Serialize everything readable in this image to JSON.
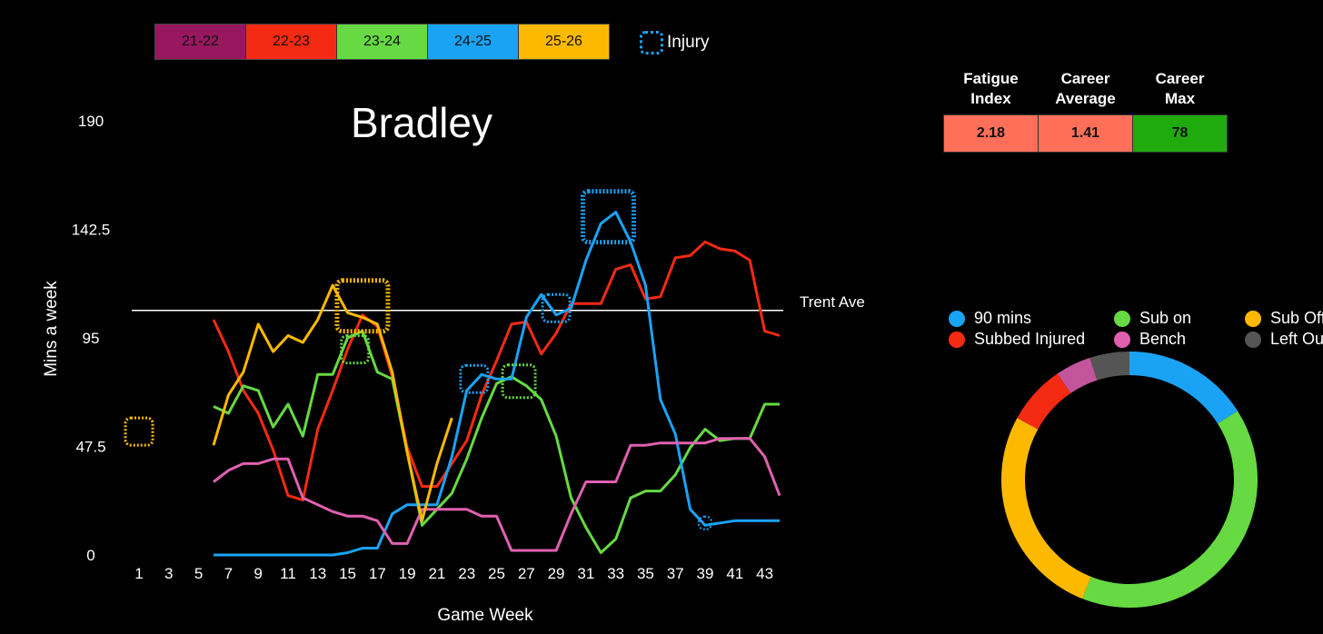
{
  "seasons": [
    {
      "label": "21-22",
      "color": "#97185f"
    },
    {
      "label": "22-23",
      "color": "#f52a12"
    },
    {
      "label": "23-24",
      "color": "#66d943"
    },
    {
      "label": "24-25",
      "color": "#1aa3f5"
    },
    {
      "label": "25-26",
      "color": "#fcb900"
    }
  ],
  "injury_legend": {
    "label": "Injury"
  },
  "stats_table": {
    "headers": [
      "Fatigue\nIndex",
      "Career\nAverage",
      "Career\nMax"
    ],
    "values": [
      "2.18",
      "1.41",
      "78"
    ],
    "colors": [
      "#ff6f59",
      "#ff6f59",
      "#1faa0e"
    ]
  },
  "chart_data": [
    {
      "type": "line",
      "title": "Bradley",
      "xlabel": "Game Week",
      "ylabel": "Mins a week",
      "xlim": [
        1,
        44
      ],
      "ylim": [
        0,
        190
      ],
      "xticks": [
        1,
        3,
        5,
        7,
        9,
        11,
        13,
        15,
        17,
        19,
        21,
        23,
        25,
        27,
        29,
        31,
        33,
        35,
        37,
        39,
        41,
        43
      ],
      "yticks": [
        "0",
        "47.5",
        "95",
        "142.5",
        "190"
      ],
      "reference_line": {
        "label": "Trent Ave",
        "value": 107
      },
      "series": [
        {
          "name": "22-23",
          "color": "#f52a12",
          "x": [
            6,
            7,
            8,
            9,
            10,
            11,
            12,
            13,
            14,
            15,
            16,
            17,
            18,
            19,
            20,
            21,
            22,
            23,
            24,
            25,
            26,
            27,
            28,
            29,
            30,
            31,
            32,
            33,
            34,
            35,
            36,
            37,
            38,
            39,
            40,
            41,
            42,
            43,
            44
          ],
          "y": [
            103,
            89,
            72,
            62,
            46,
            26,
            24,
            55,
            72,
            90,
            105,
            100,
            78,
            47,
            30,
            30,
            40,
            50,
            70,
            85,
            101,
            102,
            88,
            97,
            110,
            110,
            110,
            125,
            127,
            112,
            113,
            130,
            131,
            137,
            134,
            133,
            129,
            98,
            96
          ]
        },
        {
          "name": "23-24",
          "color": "#66d943",
          "x": [
            6,
            7,
            8,
            9,
            10,
            11,
            12,
            13,
            14,
            15,
            16,
            17,
            18,
            19,
            20,
            21,
            22,
            23,
            24,
            25,
            26,
            27,
            28,
            29,
            30,
            31,
            32,
            33,
            34,
            35,
            36,
            37,
            38,
            39,
            40,
            41,
            42,
            43,
            44
          ],
          "y": [
            65,
            62,
            74,
            72,
            56,
            66,
            52,
            79,
            79,
            95,
            98,
            80,
            77,
            45,
            13,
            20,
            27,
            42,
            60,
            75,
            78,
            74,
            68,
            52,
            25,
            12,
            1,
            7,
            25,
            28,
            28,
            35,
            47,
            55,
            50,
            51,
            51,
            66,
            66
          ]
        },
        {
          "name": "24-25",
          "color": "#1aa3f5",
          "x": [
            6,
            7,
            8,
            9,
            10,
            11,
            12,
            13,
            14,
            15,
            16,
            17,
            18,
            19,
            20,
            21,
            22,
            23,
            24,
            25,
            26,
            27,
            28,
            29,
            30,
            31,
            32,
            33,
            34,
            35,
            36,
            37,
            38,
            39,
            40,
            41,
            42,
            43,
            44
          ],
          "y": [
            0,
            0,
            0,
            0,
            0,
            0,
            0,
            0,
            0,
            1,
            3,
            3,
            18,
            22,
            22,
            22,
            43,
            72,
            79,
            77,
            77,
            104,
            114,
            105,
            108,
            129,
            145,
            150,
            137,
            118,
            68,
            53,
            20,
            13,
            14,
            15,
            15,
            15,
            15
          ]
        },
        {
          "name": "21-22",
          "color": "#e060b0",
          "x": [
            6,
            7,
            8,
            9,
            10,
            11,
            12,
            13,
            14,
            15,
            16,
            17,
            18,
            19,
            20,
            21,
            22,
            23,
            24,
            25,
            26,
            27,
            28,
            29,
            30,
            31,
            32,
            33,
            34,
            35,
            36,
            37,
            38,
            39,
            40,
            41,
            42,
            43,
            44
          ],
          "y": [
            32,
            37,
            40,
            40,
            42,
            42,
            25,
            22,
            19,
            17,
            17,
            15,
            5,
            5,
            20,
            20,
            20,
            20,
            17,
            17,
            2,
            2,
            2,
            2,
            18,
            32,
            32,
            32,
            48,
            48,
            49,
            49,
            49,
            49,
            51,
            51,
            51,
            43,
            26
          ]
        },
        {
          "name": "25-26",
          "color": "#fcb900",
          "x": [
            6,
            7,
            8,
            9,
            10,
            11,
            12,
            13,
            14,
            15,
            16,
            17,
            18,
            19,
            20,
            21,
            22
          ],
          "y": [
            48,
            70,
            80,
            101,
            89,
            96,
            93,
            103,
            118,
            106,
            104,
            101,
            80,
            45,
            15,
            40,
            60
          ]
        }
      ],
      "injury_markers": [
        {
          "x": 1,
          "y": 54,
          "color": "#fcb900",
          "size": "small"
        },
        {
          "x": 16,
          "y": 109,
          "color": "#fcb900",
          "size": "large"
        },
        {
          "x": 15.5,
          "y": 90,
          "color": "#66d943",
          "size": "small"
        },
        {
          "x": 23.5,
          "y": 77,
          "color": "#1aa3f5",
          "size": "small"
        },
        {
          "x": 26.5,
          "y": 76,
          "color": "#66d943",
          "size": "medium"
        },
        {
          "x": 29,
          "y": 108,
          "color": "#1aa3f5",
          "size": "small"
        },
        {
          "x": 32.5,
          "y": 148,
          "color": "#1aa3f5",
          "size": "large"
        },
        {
          "x": 39,
          "y": 14,
          "color": "#1aa3f5",
          "size": "tiny"
        }
      ]
    },
    {
      "type": "pie",
      "style": "donut",
      "legend": [
        {
          "label": "90 mins",
          "color": "#1aa3f5"
        },
        {
          "label": "Sub on",
          "color": "#66d943"
        },
        {
          "label": "Sub Off",
          "color": "#fcb900"
        },
        {
          "label": "Subbed Injured",
          "color": "#f52a12"
        },
        {
          "label": "Bench",
          "color": "#e060b0"
        },
        {
          "label": "Left Out",
          "color": "#555555"
        }
      ],
      "slices": [
        {
          "label": "90 mins",
          "value": 16,
          "color": "#1aa3f5"
        },
        {
          "label": "Sub on",
          "value": 40,
          "color": "#66d943"
        },
        {
          "label": "Sub Off",
          "value": 27,
          "color": "#fcb900"
        },
        {
          "label": "Subbed Injured",
          "value": 7.5,
          "color": "#f52a12"
        },
        {
          "label": "Bench",
          "value": 4.5,
          "color": "#c2559b"
        },
        {
          "label": "Left Out",
          "value": 5,
          "color": "#555555"
        }
      ]
    }
  ]
}
